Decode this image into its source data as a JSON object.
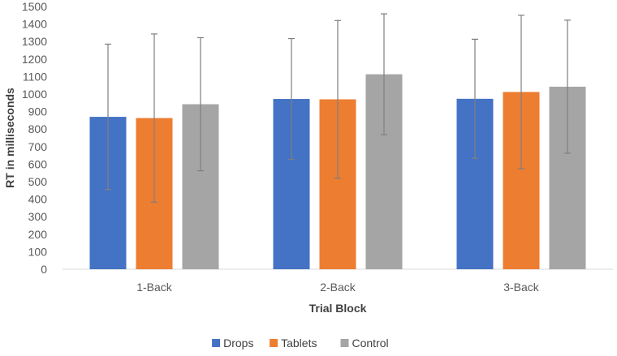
{
  "chart_data": {
    "type": "bar",
    "title": "",
    "xlabel": "Trial Block",
    "ylabel": "RT in milliseconds",
    "categories": [
      "1-Back",
      "2-Back",
      "3-Back"
    ],
    "ylim": [
      0,
      1500
    ],
    "ytick_step": 100,
    "grid": false,
    "legend_position": "bottom",
    "series": [
      {
        "name": "Drops",
        "color": "#4472C4",
        "values": [
          870,
          972,
          973
        ],
        "error": [
          415,
          345,
          340
        ]
      },
      {
        "name": "Tablets",
        "color": "#ED7D31",
        "values": [
          863,
          970,
          1012
        ],
        "error": [
          480,
          450,
          438
        ]
      },
      {
        "name": "Control",
        "color": "#A5A5A5",
        "values": [
          942,
          1113,
          1042
        ],
        "error": [
          380,
          345,
          380
        ]
      }
    ],
    "error_bar_color": "#7F7F7F"
  }
}
